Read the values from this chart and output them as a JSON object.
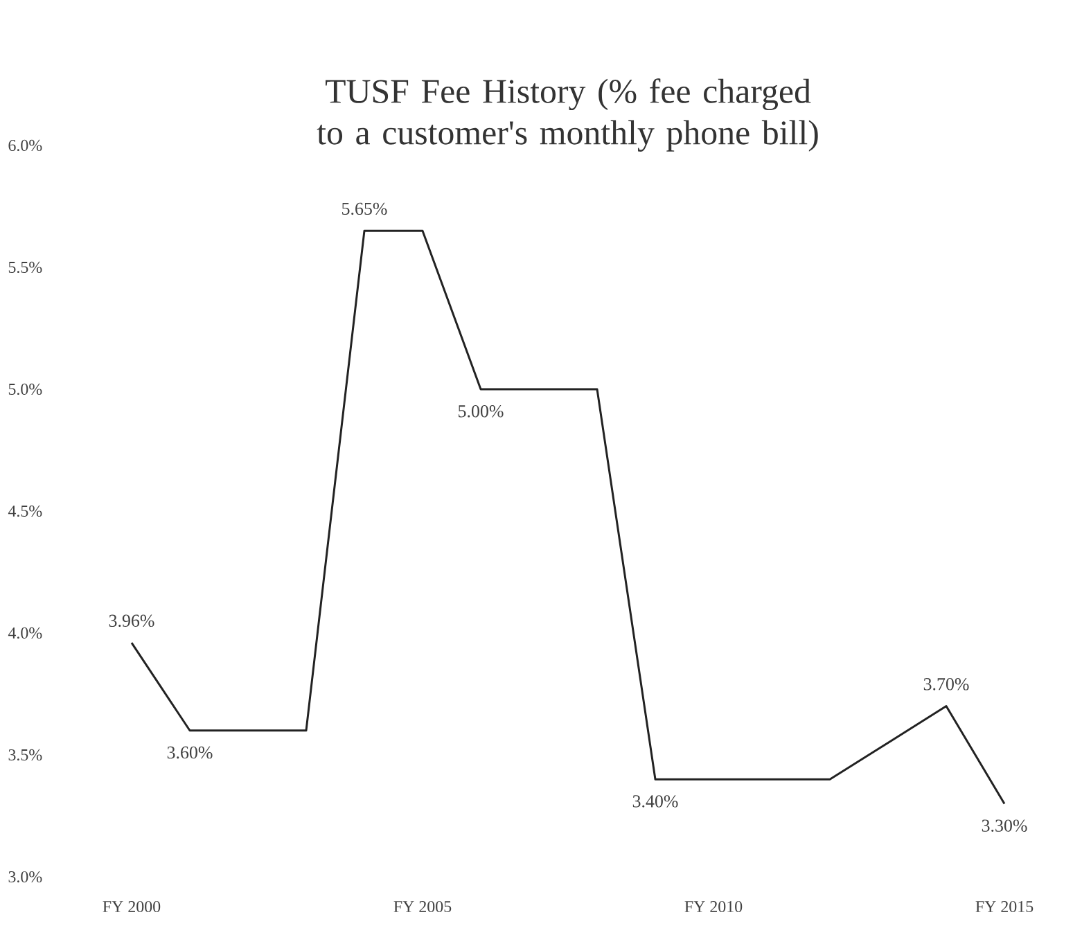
{
  "chart_data": {
    "type": "line",
    "title": "TUSF Fee History (% fee charged to a customer's monthly phone bill)",
    "categories": [
      "FY 2000",
      null,
      null,
      null,
      null,
      "FY 2005",
      null,
      null,
      null,
      null,
      "FY 2010",
      null,
      null,
      null,
      null,
      "FY 2015"
    ],
    "values": [
      3.96,
      3.6,
      3.6,
      3.6,
      5.65,
      5.65,
      5.0,
      5.0,
      5.0,
      3.4,
      3.4,
      3.4,
      3.4,
      3.55,
      3.7,
      3.3
    ],
    "value_labels": [
      "3.96%",
      "3.60%",
      null,
      null,
      "5.65%",
      null,
      "5.00%",
      null,
      null,
      "3.40%",
      null,
      null,
      null,
      null,
      "3.70%",
      "3.30%"
    ],
    "color": "#222222",
    "ylim": [
      3,
      6
    ],
    "yticks": [
      {
        "value": 3,
        "label": "3.0%"
      },
      {
        "value": 3.5,
        "label": "3.5%"
      },
      {
        "value": 4,
        "label": "4.0%"
      },
      {
        "value": 4.5,
        "label": "4.5%"
      },
      {
        "value": 5,
        "label": "5.0%"
      },
      {
        "value": 5.5,
        "label": "5.5%"
      },
      {
        "value": 6,
        "label": "6.0%"
      }
    ]
  }
}
